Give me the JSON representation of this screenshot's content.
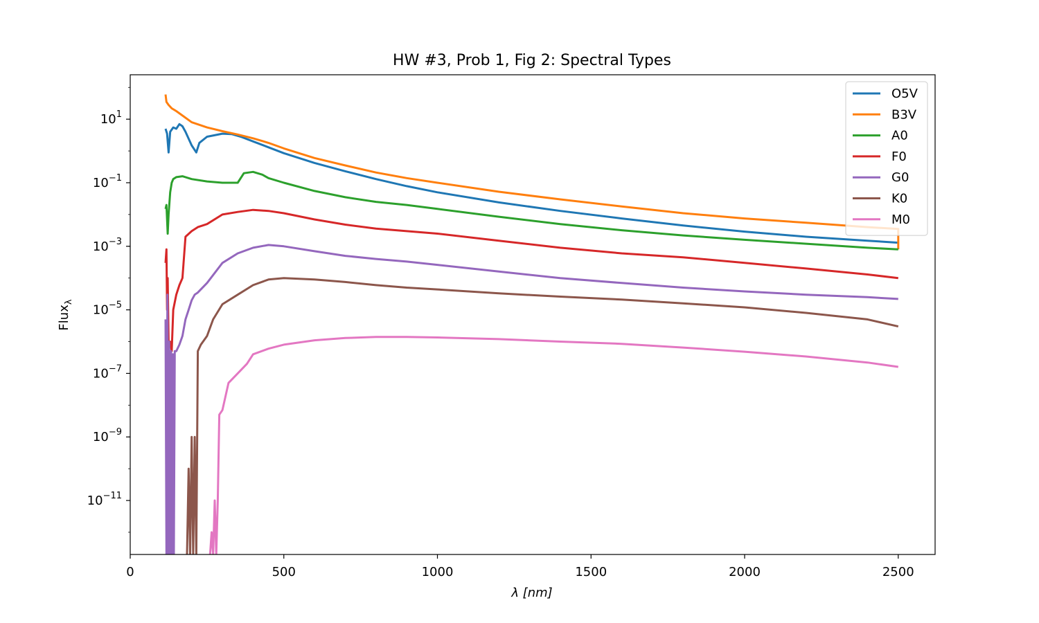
{
  "chart_data": {
    "type": "line",
    "title": "HW #3, Prob 1, Fig 2: Spectral Types",
    "xlabel": "λ [nm]",
    "ylabel": "Flux",
    "ylabel_subscript": "λ",
    "xlim": [
      0,
      2620
    ],
    "ylim": [
      2e-13,
      250
    ],
    "yscale": "log",
    "grid": false,
    "legend_position": "top-right",
    "x_ticks": [
      {
        "value": 0,
        "label": "0"
      },
      {
        "value": 500,
        "label": "500"
      },
      {
        "value": 1000,
        "label": "1000"
      },
      {
        "value": 1500,
        "label": "1500"
      },
      {
        "value": 2000,
        "label": "2000"
      },
      {
        "value": 2500,
        "label": "2500"
      }
    ],
    "y_ticks": [
      {
        "value": 10,
        "base": "10",
        "exp": "1"
      },
      {
        "value": 0.1,
        "base": "10",
        "exp": "−1"
      },
      {
        "value": 0.001,
        "base": "10",
        "exp": "−3"
      },
      {
        "value": 1e-05,
        "base": "10",
        "exp": "−5"
      },
      {
        "value": 1e-07,
        "base": "10",
        "exp": "−7"
      },
      {
        "value": 1e-09,
        "base": "10",
        "exp": "−9"
      },
      {
        "value": 1e-11,
        "base": "10",
        "exp": "−11"
      }
    ],
    "series": [
      {
        "name": "O5V",
        "color": "#1f77b4",
        "x": [
          115,
          120,
          125,
          130,
          140,
          150,
          160,
          170,
          180,
          200,
          215,
          225,
          250,
          280,
          300,
          330,
          360,
          400,
          450,
          500,
          600,
          700,
          800,
          900,
          1000,
          1200,
          1400,
          1600,
          1800,
          2000,
          2200,
          2400,
          2500
        ],
        "y": [
          5,
          3.5,
          0.9,
          4,
          5.5,
          5,
          7,
          6,
          4,
          1.5,
          0.9,
          1.8,
          2.8,
          3.2,
          3.5,
          3.4,
          2.8,
          2.0,
          1.3,
          0.85,
          0.42,
          0.23,
          0.13,
          0.078,
          0.05,
          0.024,
          0.013,
          0.0075,
          0.0045,
          0.0029,
          0.002,
          0.0015,
          0.0013
        ]
      },
      {
        "name": "B3V",
        "color": "#ff7f0e",
        "x": [
          115,
          118,
          125,
          135,
          150,
          175,
          200,
          250,
          300,
          350,
          400,
          450,
          500,
          600,
          700,
          800,
          900,
          1000,
          1200,
          1400,
          1600,
          1800,
          2000,
          2200,
          2400,
          2500,
          2500
        ],
        "y": [
          60,
          35,
          28,
          22,
          18,
          12,
          8,
          5.5,
          4.2,
          3.3,
          2.5,
          1.8,
          1.2,
          0.6,
          0.35,
          0.21,
          0.14,
          0.1,
          0.052,
          0.03,
          0.018,
          0.011,
          0.0075,
          0.0055,
          0.004,
          0.0035,
          0.0008
        ]
      },
      {
        "name": "A0",
        "color": "#2ca02c",
        "x": [
          115,
          118,
          122,
          125,
          130,
          135,
          140,
          150,
          170,
          200,
          250,
          300,
          350,
          370,
          400,
          430,
          450,
          500,
          600,
          700,
          800,
          900,
          1000,
          1200,
          1400,
          1600,
          1800,
          2000,
          2200,
          2400,
          2500
        ],
        "y": [
          0.015,
          0.02,
          0.0025,
          0.01,
          0.05,
          0.1,
          0.13,
          0.15,
          0.16,
          0.13,
          0.11,
          0.1,
          0.1,
          0.2,
          0.22,
          0.18,
          0.14,
          0.1,
          0.055,
          0.035,
          0.025,
          0.02,
          0.015,
          0.0085,
          0.005,
          0.0032,
          0.0022,
          0.0016,
          0.0012,
          0.0009,
          0.0008
        ]
      },
      {
        "name": "F0",
        "color": "#d62728",
        "x": [
          115,
          118,
          120,
          122,
          125,
          130,
          135,
          140,
          150,
          160,
          170,
          180,
          200,
          220,
          250,
          300,
          350,
          400,
          450,
          500,
          600,
          700,
          800,
          900,
          1000,
          1200,
          1400,
          1600,
          1800,
          2000,
          2200,
          2400,
          2500
        ],
        "y": [
          0.0003,
          0.0008,
          1e-05,
          0.0001,
          1e-06,
          1e-06,
          5e-07,
          1e-05,
          3e-05,
          6e-05,
          0.0001,
          0.002,
          0.003,
          0.004,
          0.005,
          0.01,
          0.012,
          0.014,
          0.013,
          0.011,
          0.007,
          0.0048,
          0.0036,
          0.003,
          0.0025,
          0.0015,
          0.0009,
          0.0006,
          0.00045,
          0.0003,
          0.0002,
          0.00013,
          0.0001
        ]
      },
      {
        "name": "G0",
        "color": "#9467bd",
        "x": [
          115,
          118,
          121,
          124,
          127,
          130,
          133,
          136,
          139,
          142,
          145,
          150,
          160,
          170,
          180,
          190,
          200,
          210,
          220,
          250,
          300,
          350,
          400,
          450,
          500,
          600,
          700,
          800,
          900,
          1000,
          1200,
          1400,
          1600,
          1800,
          2000,
          2200,
          2400,
          2500
        ],
        "y": [
          5e-06,
          1e-13,
          3e-05,
          1e-13,
          1e-06,
          1e-13,
          5e-07,
          1e-13,
          4e-07,
          1e-13,
          5e-07,
          5e-07,
          8e-07,
          1.5e-06,
          5e-06,
          1e-05,
          2e-05,
          3e-05,
          3.5e-05,
          7e-05,
          0.0003,
          0.0006,
          0.0009,
          0.0011,
          0.001,
          0.0007,
          0.0005,
          0.0004,
          0.00033,
          0.00026,
          0.00016,
          0.0001,
          7e-05,
          5e-05,
          3.8e-05,
          3e-05,
          2.5e-05,
          2.2e-05
        ]
      },
      {
        "name": "K0",
        "color": "#8c564b",
        "x": [
          185,
          190,
          195,
          200,
          205,
          210,
          215,
          220,
          230,
          250,
          270,
          300,
          350,
          400,
          450,
          500,
          600,
          700,
          800,
          900,
          1000,
          1200,
          1400,
          1600,
          1800,
          2000,
          2200,
          2400,
          2500
        ],
        "y": [
          1e-13,
          1e-10,
          1e-13,
          1e-09,
          1e-13,
          1e-09,
          1e-13,
          5e-07,
          8e-07,
          1.5e-06,
          5e-06,
          1.5e-05,
          3e-05,
          6e-05,
          9e-05,
          0.0001,
          9e-05,
          7.5e-05,
          6e-05,
          5e-05,
          4.4e-05,
          3.3e-05,
          2.6e-05,
          2.1e-05,
          1.6e-05,
          1.2e-05,
          8e-06,
          5e-06,
          3e-06
        ]
      },
      {
        "name": "M0",
        "color": "#e377c2",
        "x": [
          260,
          265,
          270,
          275,
          280,
          285,
          290,
          300,
          320,
          350,
          380,
          400,
          450,
          500,
          600,
          700,
          800,
          900,
          1000,
          1200,
          1400,
          1600,
          1800,
          2000,
          2200,
          2400,
          2500
        ],
        "y": [
          1e-13,
          1e-12,
          1e-13,
          1e-11,
          1e-13,
          1e-11,
          5e-09,
          7e-09,
          5e-08,
          1e-07,
          2e-07,
          4e-07,
          6e-07,
          8e-07,
          1.1e-06,
          1.3e-06,
          1.4e-06,
          1.4e-06,
          1.35e-06,
          1.2e-06,
          1e-06,
          8.5e-07,
          6.5e-07,
          4.8e-07,
          3.4e-07,
          2.2e-07,
          1.6e-07
        ]
      }
    ]
  }
}
